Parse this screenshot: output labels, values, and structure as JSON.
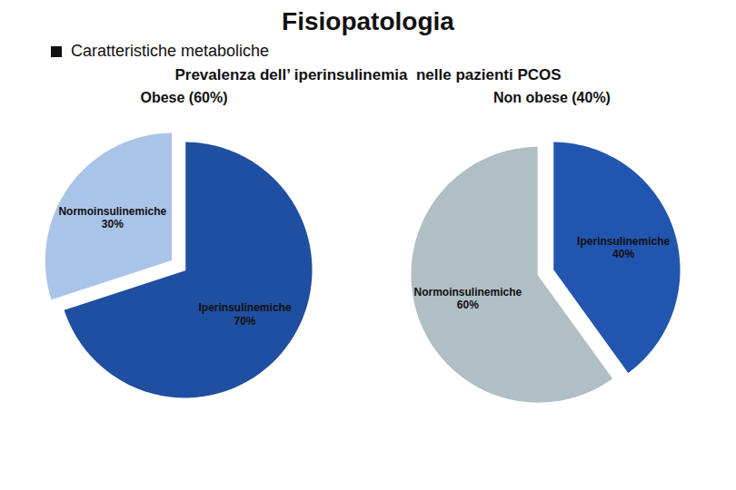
{
  "title": "Fisiopatologia",
  "subtitle": "Prevalenza dell’ iperinsulinemia  nelle pazienti PCOS",
  "annotations": [
    "Caratteristiche metaboliche"
  ],
  "chart_data": [
    {
      "type": "pie",
      "title": "Obese (60%)",
      "categories": [
        "Iperinsulinemiche",
        "Normoinsulinemiche"
      ],
      "values": [
        70,
        30
      ],
      "value_labels": [
        "70%",
        "30%"
      ],
      "colors": [
        "#1f4fa0",
        "#aac4e8"
      ],
      "data_labels": true
    },
    {
      "type": "pie",
      "title": "Non obese (40%)",
      "categories": [
        "Iperinsulinemiche",
        "Normoinsulinemiche"
      ],
      "values": [
        40,
        60
      ],
      "value_labels": [
        "40%",
        "60%"
      ],
      "colors": [
        "#2255b0",
        "#b0bec5"
      ],
      "data_labels": true
    }
  ]
}
